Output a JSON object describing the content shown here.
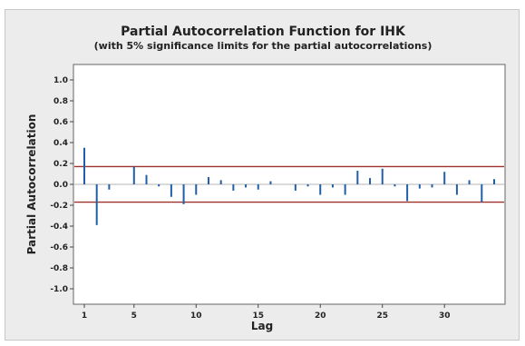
{
  "chart_data": {
    "type": "bar",
    "title": "Partial Autocorrelation Function for IHK",
    "subtitle": "(with 5% significance limits for the partial autocorrelations)",
    "xlabel": "Lag",
    "ylabel": "Partial Autocorrelation",
    "xlim": [
      1,
      34
    ],
    "ylim": [
      -1.0,
      1.0
    ],
    "x_ticks": [
      1,
      5,
      10,
      15,
      20,
      25,
      30
    ],
    "y_ticks": [
      "1.0",
      "0.8",
      "0.6",
      "0.4",
      "0.2",
      "0.0",
      "-0.2",
      "-0.4",
      "-0.6",
      "-0.8",
      "-1.0"
    ],
    "significance_limits": [
      0.17,
      -0.17
    ],
    "series": [
      {
        "lags": [
          1,
          2,
          3,
          4,
          5,
          6,
          7,
          8,
          9,
          10,
          11,
          12,
          13,
          14,
          15,
          16,
          17,
          18,
          19,
          20,
          21,
          22,
          23,
          24,
          25,
          26,
          27,
          28,
          29,
          30,
          31,
          32,
          33,
          34
        ],
        "values": [
          0.35,
          -0.39,
          -0.05,
          0.0,
          0.17,
          0.09,
          -0.02,
          -0.12,
          -0.19,
          -0.1,
          0.07,
          0.04,
          -0.06,
          -0.03,
          -0.05,
          0.03,
          0.0,
          -0.06,
          -0.02,
          -0.1,
          -0.03,
          -0.1,
          0.13,
          0.06,
          0.15,
          -0.02,
          -0.16,
          -0.04,
          -0.03,
          0.12,
          -0.1,
          0.04,
          -0.17,
          0.05
        ]
      }
    ],
    "colors": {
      "spike": "#1f5fa8",
      "limit": "#a0302a",
      "background": "#ececec",
      "plot_area": "#ffffff"
    },
    "grid": false
  }
}
